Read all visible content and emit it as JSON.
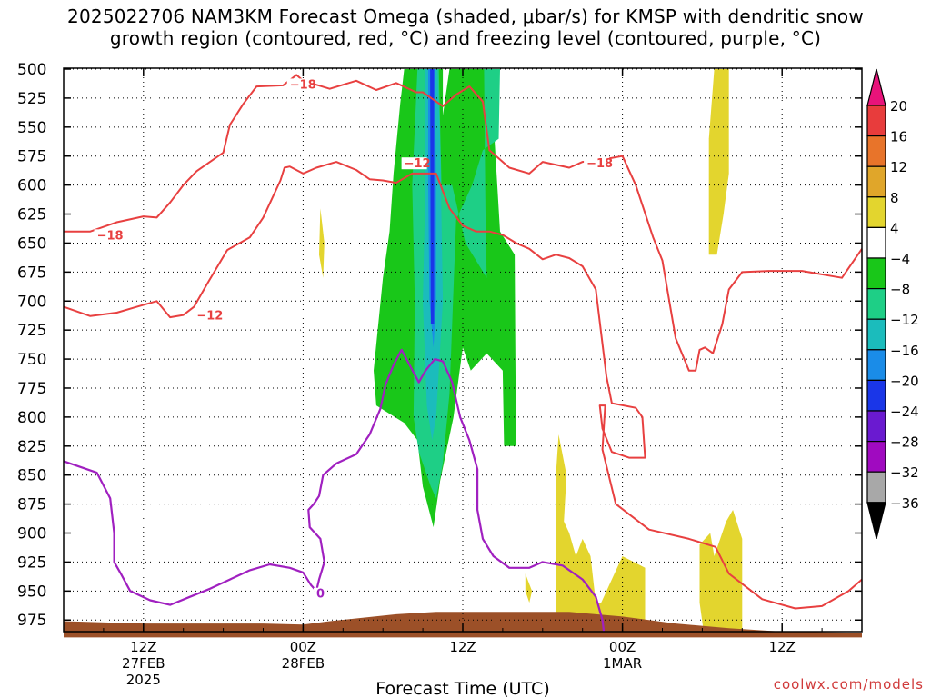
{
  "title": {
    "line1": "2025022706 NAM3KM Forecast Omega (shaded, μbar/s) for KMSP with dendritic snow",
    "line2": "growth region (contoured, red, °C) and freezing level (contoured, purple, °C)"
  },
  "credit": "coolwx.com/models",
  "chart_data": {
    "type": "heatmap",
    "title": "2025022706 NAM3KM Forecast Omega (shaded, μbar/s) for KMSP with dendritic snow growth region (contoured, red, °C) and freezing level (contoured, purple, °C)",
    "xlabel": "Forecast Time (UTC)",
    "ylabel": "",
    "x_range_hours_from_init": [
      0,
      60
    ],
    "y_range_hPa": [
      500,
      985
    ],
    "y_ticks": [
      500,
      525,
      550,
      575,
      600,
      625,
      650,
      675,
      700,
      725,
      750,
      775,
      800,
      825,
      850,
      875,
      900,
      925,
      950,
      975
    ],
    "y_tick_labels": [
      "500",
      "525",
      "550",
      "575",
      "600",
      "625",
      "650",
      "675",
      "700",
      "725",
      "750",
      "775",
      "800",
      "825",
      "850",
      "875",
      "900",
      "925",
      "950",
      "975"
    ],
    "x_ticks": [
      {
        "hour": 6,
        "label": "12Z",
        "sub1": "27FEB",
        "sub2": "2025"
      },
      {
        "hour": 18,
        "label": "00Z",
        "sub1": "28FEB",
        "sub2": ""
      },
      {
        "hour": 30,
        "label": "12Z",
        "sub1": "",
        "sub2": ""
      },
      {
        "hour": 42,
        "label": "00Z",
        "sub1": "1MAR",
        "sub2": ""
      },
      {
        "hour": 54,
        "label": "12Z",
        "sub1": "",
        "sub2": ""
      }
    ],
    "grid": "dotted",
    "colorbar": {
      "labels": [
        "20",
        "16",
        "12",
        "8",
        "4",
        "-4",
        "-8",
        "-12",
        "-16",
        "-20",
        "-24",
        "-28",
        "-32",
        "-36"
      ],
      "colors": [
        "#e8137a",
        "#e83c3c",
        "#e8742a",
        "#e0a62a",
        "#e3d52e",
        "#ffffff",
        "#19c719",
        "#1ecf86",
        "#1bbcbc",
        "#1a8ce8",
        "#1a36e8",
        "#6a1ad0",
        "#a00ac0",
        "#a8a8a8",
        "#000000"
      ]
    },
    "omega_regions": [
      {
        "level": -4,
        "color": "#19c719",
        "polygon": [
          [
            25.6,
            500
          ],
          [
            28.5,
            500
          ],
          [
            28.5,
            540
          ],
          [
            29.0,
            500
          ],
          [
            31.8,
            500
          ],
          [
            32.2,
            525
          ],
          [
            32.8,
            640
          ],
          [
            33.9,
            660
          ],
          [
            34.0,
            825
          ],
          [
            33.1,
            825
          ],
          [
            33.0,
            760
          ],
          [
            31.8,
            745
          ],
          [
            30.6,
            760
          ],
          [
            30.0,
            740
          ],
          [
            29.3,
            800
          ],
          [
            28.3,
            855
          ],
          [
            27.8,
            895
          ],
          [
            27.0,
            860
          ],
          [
            26.6,
            820
          ],
          [
            25.6,
            805
          ],
          [
            23.5,
            790
          ],
          [
            23.3,
            760
          ],
          [
            24.0,
            680
          ],
          [
            24.5,
            640
          ],
          [
            24.8,
            590
          ],
          [
            25.3,
            530
          ]
        ]
      },
      {
        "level": -8,
        "color": "#1ecf86",
        "polygon": [
          [
            26.6,
            500
          ],
          [
            28.2,
            500
          ],
          [
            28.4,
            600
          ],
          [
            29.2,
            600
          ],
          [
            30.2,
            650
          ],
          [
            31.8,
            680
          ],
          [
            31.7,
            620
          ],
          [
            31.6,
            500
          ],
          [
            32.8,
            500
          ],
          [
            32.7,
            560
          ],
          [
            31.5,
            570
          ],
          [
            30.7,
            600
          ],
          [
            29.5,
            630
          ],
          [
            29.0,
            780
          ],
          [
            28.5,
            840
          ],
          [
            28.0,
            870
          ],
          [
            27.6,
            860
          ],
          [
            26.7,
            830
          ],
          [
            26.3,
            800
          ],
          [
            26.4,
            700
          ],
          [
            26.2,
            600
          ]
        ]
      },
      {
        "level": -12,
        "color": "#1bbcbc",
        "polygon": [
          [
            27.2,
            500
          ],
          [
            28.1,
            500
          ],
          [
            28.3,
            560
          ],
          [
            28.5,
            700
          ],
          [
            28.0,
            800
          ],
          [
            27.7,
            820
          ],
          [
            27.3,
            790
          ],
          [
            27.0,
            700
          ],
          [
            27.2,
            600
          ]
        ]
      },
      {
        "level": -16,
        "color": "#1a8ce8",
        "polygon": [
          [
            27.4,
            500
          ],
          [
            27.9,
            500
          ],
          [
            28.0,
            600
          ],
          [
            28.0,
            700
          ],
          [
            27.8,
            740
          ],
          [
            27.5,
            700
          ],
          [
            27.4,
            600
          ]
        ]
      },
      {
        "level": -20,
        "color": "#1a36e8",
        "polygon": [
          [
            27.55,
            500
          ],
          [
            27.85,
            500
          ],
          [
            27.85,
            720
          ],
          [
            27.6,
            720
          ]
        ]
      },
      {
        "level": 4,
        "color": "#e3d52e",
        "polygon": [
          [
            48.9,
            500
          ],
          [
            50.0,
            500
          ],
          [
            50.0,
            590
          ],
          [
            49.6,
            625
          ],
          [
            49.1,
            660
          ],
          [
            48.5,
            660
          ],
          [
            48.5,
            560
          ]
        ]
      },
      {
        "level": 4,
        "color": "#e3d52e",
        "polygon": [
          [
            19.3,
            620
          ],
          [
            19.6,
            650
          ],
          [
            19.5,
            680
          ],
          [
            19.2,
            660
          ]
        ]
      },
      {
        "level": 4,
        "color": "#e3d52e",
        "polygon": [
          [
            37.2,
            815
          ],
          [
            37.8,
            850
          ],
          [
            37.6,
            890
          ],
          [
            38.0,
            900
          ],
          [
            38.5,
            920
          ],
          [
            39.0,
            905
          ],
          [
            39.6,
            920
          ],
          [
            39.8,
            940
          ],
          [
            40.0,
            960
          ],
          [
            40.4,
            960
          ],
          [
            42.0,
            920
          ],
          [
            43.7,
            930
          ],
          [
            43.7,
            985
          ],
          [
            37.0,
            985
          ],
          [
            37.0,
            850
          ]
        ]
      },
      {
        "level": 4,
        "color": "#e3d52e",
        "polygon": [
          [
            34.7,
            935
          ],
          [
            35.2,
            950
          ],
          [
            35.0,
            960
          ],
          [
            34.7,
            950
          ]
        ]
      },
      {
        "level": 4,
        "color": "#e3d52e",
        "polygon": [
          [
            47.8,
            910
          ],
          [
            48.6,
            900
          ],
          [
            48.9,
            920
          ],
          [
            49.8,
            890
          ],
          [
            50.3,
            880
          ],
          [
            51.0,
            905
          ],
          [
            51.0,
            985
          ],
          [
            48.1,
            985
          ],
          [
            47.8,
            960
          ]
        ]
      }
    ],
    "dendritic_contours": [
      {
        "label": "-18",
        "color": "#e84040",
        "points": [
          [
            0,
            640
          ],
          [
            2,
            640
          ],
          [
            4,
            632
          ],
          [
            6,
            627
          ],
          [
            7,
            628
          ],
          [
            8,
            615
          ],
          [
            9,
            600
          ],
          [
            10,
            588
          ],
          [
            11,
            580
          ],
          [
            12,
            572
          ],
          [
            12.5,
            548
          ],
          [
            13.5,
            530
          ],
          [
            14.5,
            515
          ],
          [
            16.5,
            514
          ],
          [
            17.5,
            505
          ],
          [
            18,
            510
          ],
          [
            20,
            517
          ],
          [
            22,
            510
          ],
          [
            23.5,
            518
          ],
          [
            25,
            512
          ],
          [
            26.5,
            520
          ],
          [
            27,
            520
          ],
          [
            28.5,
            532
          ],
          [
            29.5,
            522
          ],
          [
            30.5,
            515
          ],
          [
            31.5,
            528
          ],
          [
            32,
            570
          ],
          [
            33.5,
            585
          ],
          [
            35,
            590
          ],
          [
            36,
            580
          ],
          [
            38,
            585
          ],
          [
            39,
            580
          ],
          [
            40.5,
            578
          ],
          [
            42,
            575
          ],
          [
            43,
            600
          ],
          [
            44.3,
            645
          ],
          [
            45,
            665
          ],
          [
            46,
            732
          ],
          [
            47,
            760
          ],
          [
            47.5,
            760
          ],
          [
            47.8,
            742
          ],
          [
            48.2,
            740
          ],
          [
            48.8,
            745
          ],
          [
            49.5,
            720
          ],
          [
            50,
            690
          ],
          [
            51.0,
            675
          ],
          [
            53,
            674
          ],
          [
            55.5,
            674
          ],
          [
            57.5,
            678
          ],
          [
            58.5,
            680
          ],
          [
            60,
            655
          ]
        ]
      },
      {
        "label": "-12",
        "color": "#e84040",
        "points": [
          [
            0,
            705
          ],
          [
            2,
            713
          ],
          [
            4,
            710
          ],
          [
            5.5,
            705
          ],
          [
            7,
            700
          ],
          [
            8,
            714
          ],
          [
            9,
            712
          ],
          [
            9.8,
            705
          ],
          [
            10.8,
            685
          ],
          [
            12.3,
            656
          ],
          [
            14,
            645
          ],
          [
            15,
            628
          ],
          [
            16.3,
            596
          ],
          [
            16.6,
            585
          ],
          [
            17,
            584
          ],
          [
            18,
            590
          ],
          [
            19,
            585
          ],
          [
            20.5,
            580
          ],
          [
            22,
            587
          ],
          [
            23,
            595
          ],
          [
            24,
            596
          ],
          [
            25,
            598
          ],
          [
            26.2,
            590
          ],
          [
            27.2,
            590
          ],
          [
            28,
            590
          ],
          [
            29,
            620
          ],
          [
            30,
            635
          ],
          [
            31,
            640
          ],
          [
            32,
            640
          ],
          [
            33,
            643
          ],
          [
            34,
            650
          ],
          [
            35,
            655
          ],
          [
            36,
            664
          ],
          [
            37,
            660
          ],
          [
            38,
            663
          ],
          [
            39,
            670
          ],
          [
            40,
            690
          ],
          [
            40.8,
            765
          ],
          [
            41.2,
            788
          ],
          [
            43,
            792
          ],
          [
            43.5,
            800
          ],
          [
            43.7,
            835
          ],
          [
            42.5,
            835
          ],
          [
            41.2,
            830
          ],
          [
            40.5,
            810
          ],
          [
            40.3,
            790
          ],
          [
            40.7,
            790
          ],
          [
            40.5,
            828
          ],
          [
            41.5,
            875
          ],
          [
            44,
            897
          ],
          [
            47,
            905
          ],
          [
            49,
            912
          ],
          [
            50,
            935
          ],
          [
            52.5,
            957
          ],
          [
            55,
            965
          ],
          [
            57,
            963
          ],
          [
            59,
            950
          ],
          [
            60,
            940
          ]
        ]
      }
    ],
    "freezing_contour": {
      "label": "0",
      "color": "#a020c0",
      "points": [
        [
          0,
          838
        ],
        [
          2.5,
          848
        ],
        [
          3.5,
          870
        ],
        [
          3.8,
          900
        ],
        [
          3.8,
          925
        ],
        [
          4.3,
          935
        ],
        [
          5,
          950
        ],
        [
          6.5,
          958
        ],
        [
          8,
          962
        ],
        [
          9.5,
          955
        ],
        [
          11,
          948
        ],
        [
          12.5,
          940
        ],
        [
          14,
          932
        ],
        [
          15.5,
          927
        ],
        [
          17,
          930
        ],
        [
          18,
          934
        ],
        [
          18.6,
          945
        ],
        [
          19,
          950
        ],
        [
          19.2,
          940
        ],
        [
          19.6,
          925
        ],
        [
          19.3,
          905
        ],
        [
          18.5,
          895
        ],
        [
          18.4,
          880
        ],
        [
          18.8,
          875
        ],
        [
          19.2,
          868
        ],
        [
          19.5,
          850
        ],
        [
          20.5,
          840
        ],
        [
          22,
          832
        ],
        [
          23,
          815
        ],
        [
          23.8,
          793
        ],
        [
          24.2,
          772
        ],
        [
          24.8,
          755
        ],
        [
          25.4,
          742
        ],
        [
          26,
          755
        ],
        [
          26.7,
          770
        ],
        [
          27.2,
          760
        ],
        [
          27.9,
          750
        ],
        [
          28.5,
          752
        ],
        [
          29.2,
          770
        ],
        [
          29.8,
          800
        ],
        [
          30.5,
          820
        ],
        [
          31.1,
          845
        ],
        [
          31.1,
          880
        ],
        [
          31.5,
          905
        ],
        [
          32.3,
          920
        ],
        [
          33.5,
          930
        ],
        [
          35,
          930
        ],
        [
          36,
          925
        ],
        [
          37.5,
          928
        ],
        [
          39,
          940
        ],
        [
          40,
          955
        ],
        [
          40.5,
          975
        ],
        [
          40.6,
          985
        ]
      ]
    },
    "terrain_color": "#9c5028"
  }
}
